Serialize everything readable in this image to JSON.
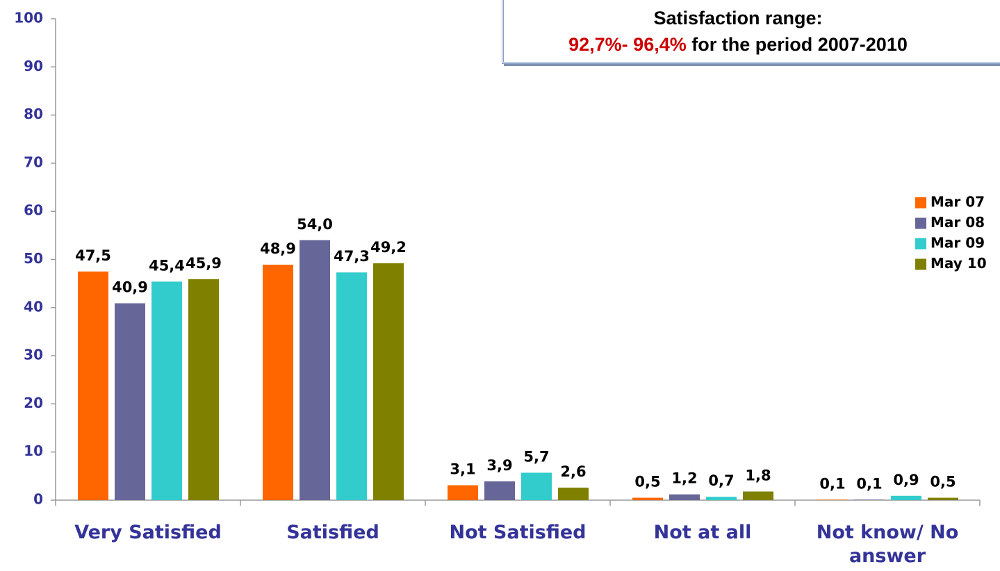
{
  "chart_data": {
    "type": "bar",
    "categories": [
      "Very Satisfied",
      "Satisfied",
      "Not Satisfied",
      "Not at all",
      "Not know/ No answer"
    ],
    "series": [
      {
        "name": "Mar 07",
        "color": "#FF6600",
        "values": [
          47.5,
          48.9,
          3.1,
          0.5,
          0.1
        ],
        "value_labels": [
          "47,5",
          "48,9",
          "3,1",
          "0,5",
          "0,1"
        ]
      },
      {
        "name": "Mar 08",
        "color": "#666699",
        "values": [
          40.9,
          54.0,
          3.9,
          1.2,
          0.1
        ],
        "value_labels": [
          "40,9",
          "54,0",
          "3,9",
          "1,2",
          "0,1"
        ]
      },
      {
        "name": "Mar 09",
        "color": "#33CCCC",
        "values": [
          45.4,
          47.3,
          5.7,
          0.7,
          0.9
        ],
        "value_labels": [
          "45,4",
          "47,3",
          "5,7",
          "0,7",
          "0,9"
        ]
      },
      {
        "name": "May 10",
        "color": "#808000",
        "values": [
          45.9,
          49.2,
          2.6,
          1.8,
          0.5
        ],
        "value_labels": [
          "45,9",
          "49,2",
          "2,6",
          "1,8",
          "0,5"
        ]
      }
    ],
    "ylim": [
      0,
      100
    ],
    "yticks": [
      0,
      10,
      20,
      30,
      40,
      50,
      60,
      70,
      80,
      90,
      100
    ],
    "legend": "right",
    "annotation": {
      "title": "Satisfaction range:",
      "highlight": "92,7%- 96,4%",
      "text": " for the period 2007-2010"
    }
  }
}
